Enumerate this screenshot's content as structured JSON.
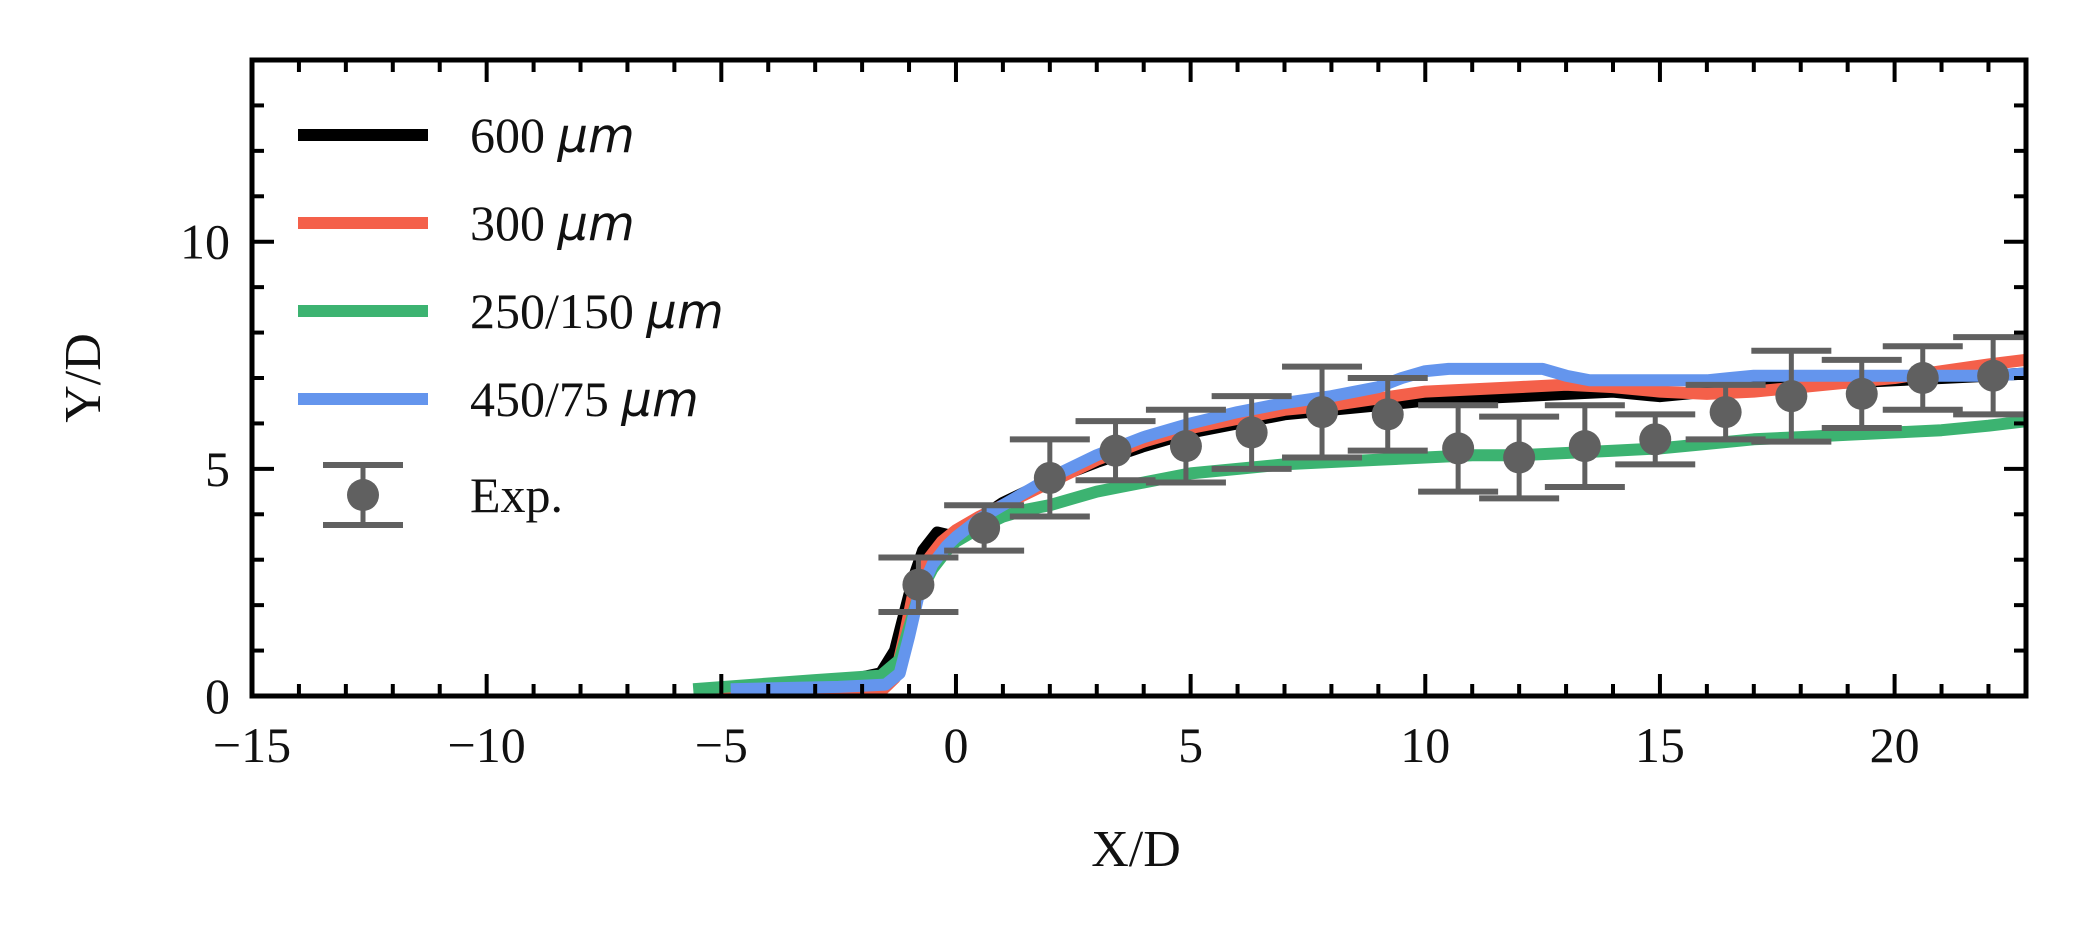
{
  "chart_data": {
    "type": "line",
    "title": "",
    "xlabel": "X/D",
    "ylabel": "Y/D",
    "xlim": [
      -15,
      22.8
    ],
    "ylim": [
      0,
      14
    ],
    "x_ticks": [
      -15,
      -10,
      -5,
      0,
      5,
      10,
      15,
      20
    ],
    "x_tick_labels": [
      "−15",
      "−10",
      "−5",
      "0",
      "5",
      "10",
      "15",
      "20"
    ],
    "y_ticks": [
      0,
      5,
      10
    ],
    "y_tick_labels": [
      "0",
      "5",
      "10"
    ],
    "legend_position": "top-left",
    "series": [
      {
        "name": "600",
        "unit": "μm",
        "color": "#000000",
        "x": [
          -5.5,
          -2.5,
          -1.6,
          -1.3,
          -1.1,
          -0.9,
          -0.7,
          -0.4,
          -0.2,
          0,
          0.5,
          1.0,
          1.5,
          2.0,
          3.0,
          4.0,
          5.0,
          6.0,
          7.0,
          8.0,
          9.0,
          10.0,
          11.0,
          12.0,
          13.0,
          14.0,
          15.0,
          16.0,
          17.0,
          18.0,
          19.0,
          20.0,
          21.0,
          22.0,
          22.8
        ],
        "y": [
          0.1,
          0.3,
          0.5,
          1.0,
          1.8,
          2.6,
          3.2,
          3.6,
          3.55,
          3.5,
          3.9,
          4.25,
          4.5,
          4.75,
          5.15,
          5.5,
          5.8,
          6.0,
          6.2,
          6.3,
          6.4,
          6.5,
          6.55,
          6.6,
          6.65,
          6.7,
          6.6,
          6.7,
          6.8,
          6.85,
          6.9,
          6.95,
          7.0,
          7.05,
          7.1
        ]
      },
      {
        "name": "300",
        "unit": "μm",
        "color": "#f4604a",
        "x": [
          -5.5,
          -2.5,
          -1.6,
          -1.3,
          -1.1,
          -0.9,
          -0.6,
          -0.3,
          0,
          0.5,
          1.0,
          1.5,
          2.0,
          3.0,
          4.0,
          5.0,
          6.0,
          7.0,
          8.0,
          9.0,
          10.0,
          11.0,
          12.0,
          13.0,
          14.0,
          15.0,
          16.0,
          17.0,
          18.0,
          19.0,
          20.0,
          21.0,
          22.0,
          22.8
        ],
        "y": [
          0.05,
          0.05,
          0.1,
          0.4,
          1.3,
          2.3,
          3.0,
          3.4,
          3.65,
          3.95,
          4.2,
          4.45,
          4.7,
          5.2,
          5.6,
          5.9,
          6.1,
          6.3,
          6.4,
          6.55,
          6.7,
          6.75,
          6.8,
          6.85,
          6.8,
          6.7,
          6.65,
          6.7,
          6.8,
          6.9,
          7.0,
          7.15,
          7.3,
          7.4
        ]
      },
      {
        "name": "250/150",
        "unit": "μm",
        "color": "#3cb371",
        "x": [
          -5.6,
          -3.0,
          -1.6,
          -1.2,
          -1.0,
          -0.8,
          -0.5,
          -0.2,
          0,
          0.5,
          1.0,
          1.5,
          2.0,
          2.5,
          3.0,
          3.5,
          4.0,
          5.0,
          6.0,
          7.0,
          8.0,
          9.0,
          10.0,
          11.0,
          12.0,
          13.0,
          14.0,
          15.0,
          16.0,
          17.0,
          18.0,
          19.0,
          20.0,
          21.0,
          22.0,
          22.8
        ],
        "y": [
          0.15,
          0.35,
          0.45,
          0.8,
          1.5,
          2.2,
          2.8,
          3.2,
          3.4,
          3.7,
          3.95,
          4.1,
          4.2,
          4.35,
          4.5,
          4.6,
          4.7,
          4.9,
          5.0,
          5.1,
          5.15,
          5.2,
          5.25,
          5.3,
          5.3,
          5.35,
          5.4,
          5.45,
          5.55,
          5.65,
          5.7,
          5.75,
          5.8,
          5.85,
          5.95,
          6.05
        ]
      },
      {
        "name": "450/75",
        "unit": "μm",
        "color": "#6495ed",
        "x": [
          -4.8,
          -2.5,
          -1.5,
          -1.2,
          -1.0,
          -0.8,
          -0.5,
          -0.2,
          0,
          0.5,
          1.0,
          1.5,
          2.0,
          3.0,
          4.0,
          5.0,
          6.0,
          7.0,
          8.0,
          9.0,
          9.5,
          10.0,
          10.5,
          11.0,
          12.0,
          12.5,
          13.0,
          13.5,
          14.0,
          15.0,
          16.0,
          16.5,
          17.0,
          18.0,
          19.0,
          20.0,
          21.0,
          22.0,
          22.8
        ],
        "y": [
          0.15,
          0.2,
          0.25,
          0.5,
          1.3,
          2.2,
          2.9,
          3.3,
          3.5,
          3.9,
          4.2,
          4.5,
          4.8,
          5.3,
          5.7,
          6.0,
          6.25,
          6.45,
          6.6,
          6.8,
          7.0,
          7.15,
          7.2,
          7.2,
          7.2,
          7.2,
          7.05,
          6.95,
          6.95,
          6.95,
          6.95,
          7.0,
          7.05,
          7.05,
          7.05,
          7.05,
          7.05,
          7.05,
          7.1
        ]
      }
    ],
    "experiment": {
      "name": "Exp.",
      "color": "#606060",
      "x": [
        -0.8,
        0.6,
        2.0,
        3.4,
        4.9,
        6.3,
        7.8,
        9.2,
        10.7,
        12.0,
        13.4,
        14.9,
        16.4,
        17.8,
        19.3,
        20.6,
        22.1
      ],
      "y": [
        2.45,
        3.7,
        4.8,
        5.4,
        5.5,
        5.8,
        6.25,
        6.2,
        5.45,
        5.25,
        5.5,
        5.65,
        6.25,
        6.6,
        6.65,
        7.0,
        7.05
      ],
      "err": [
        0.6,
        0.5,
        0.85,
        0.65,
        0.8,
        0.8,
        1.0,
        0.8,
        0.95,
        0.9,
        0.9,
        0.55,
        0.6,
        1.0,
        0.75,
        0.7,
        0.85
      ]
    }
  }
}
